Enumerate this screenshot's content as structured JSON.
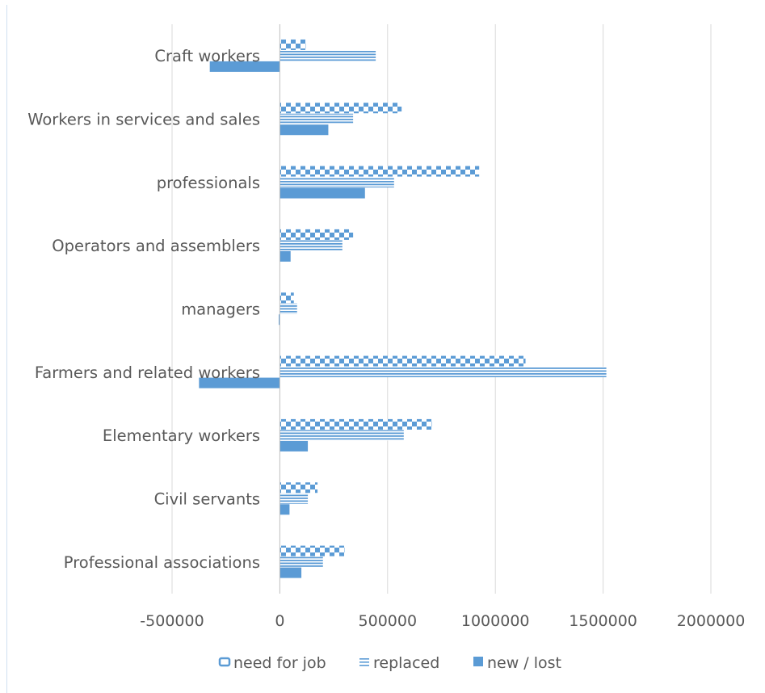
{
  "chart_data": {
    "type": "bar",
    "orientation": "horizontal",
    "title": "",
    "xlabel": "",
    "ylabel": "",
    "categories": [
      "Craft workers",
      "Workers in services and sales",
      "professionals",
      "Operators and assemblers",
      "managers",
      "Farmers and related workers",
      "Elementary workers",
      "Civil servants",
      "Professional associations"
    ],
    "series": [
      {
        "name": "need for job",
        "pattern": "checker",
        "color": "#5b9bd5",
        "values": [
          120000,
          565000,
          925000,
          340000,
          65000,
          1140000,
          705000,
          175000,
          300000
        ]
      },
      {
        "name": "replaced",
        "pattern": "horizontal-stripes",
        "color": "#5b9bd5",
        "values": [
          445000,
          340000,
          530000,
          290000,
          80000,
          1515000,
          575000,
          130000,
          200000
        ]
      },
      {
        "name": "new / lost",
        "pattern": "solid",
        "color": "#5b9bd5",
        "values": [
          -325000,
          225000,
          395000,
          50000,
          -5000,
          -375000,
          130000,
          45000,
          100000
        ]
      }
    ],
    "xlim": [
      -500000,
      2000000
    ],
    "xticks": [
      "-500000",
      "0",
      "500000",
      "1000000",
      "1500000",
      "2000000"
    ],
    "grid": "vertical",
    "legend_position": "bottom"
  }
}
